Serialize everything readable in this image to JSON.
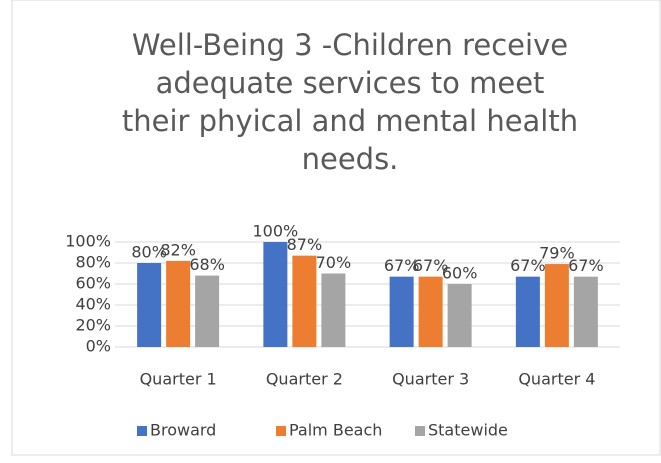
{
  "chart_data": {
    "type": "bar",
    "title": "Well-Being 3 -Children receive adequate services to meet their phyical and mental health needs.",
    "categories": [
      "Quarter 1",
      "Quarter 2",
      "Quarter 3",
      "Quarter 4"
    ],
    "series": [
      {
        "name": "Broward",
        "color": "#4472c4",
        "values": [
          80,
          100,
          67,
          67
        ],
        "value_labels": [
          "80%",
          "100%",
          "67%",
          "67%"
        ]
      },
      {
        "name": "Palm Beach",
        "color": "#ed7d31",
        "values": [
          82,
          87,
          67,
          79
        ],
        "value_labels": [
          "82%",
          "87%",
          "67%",
          "79%"
        ]
      },
      {
        "name": "Statewide",
        "color": "#a5a5a5",
        "values": [
          68,
          70,
          60,
          67
        ],
        "value_labels": [
          "68%",
          "70%",
          "60%",
          "67%"
        ]
      }
    ],
    "ylim": [
      0,
      100
    ],
    "yticks": [
      {
        "value": 0,
        "label": "0%"
      },
      {
        "value": 20,
        "label": "20%"
      },
      {
        "value": 40,
        "label": "40%"
      },
      {
        "value": 60,
        "label": "60%"
      },
      {
        "value": 80,
        "label": "80%"
      },
      {
        "value": 100,
        "label": "100%"
      }
    ],
    "grid": true,
    "legend": "bottom"
  }
}
